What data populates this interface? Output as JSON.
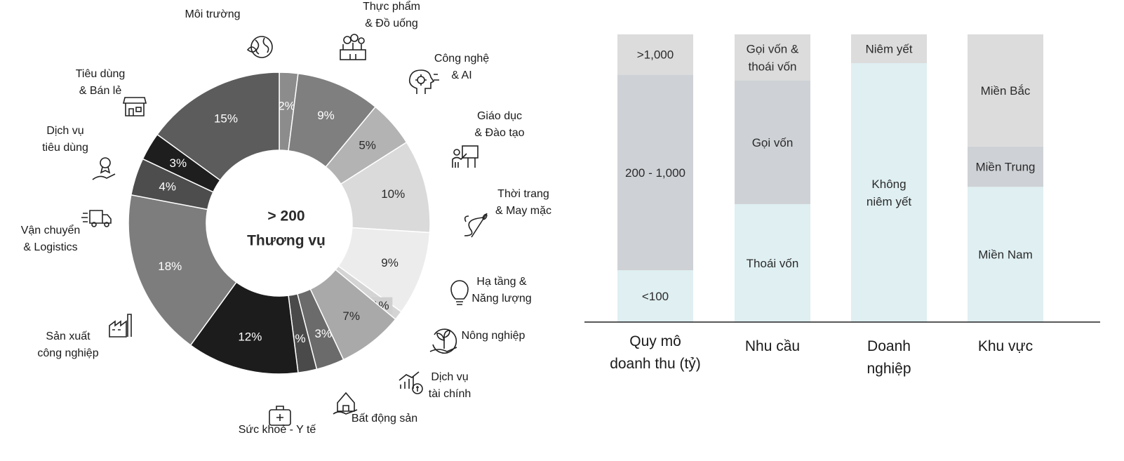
{
  "chart_data": [
    {
      "type": "pie",
      "center_text": [
        "> 200",
        "Thương vụ"
      ],
      "slices": [
        {
          "category": "Môi trường",
          "value": 2,
          "label": "2%",
          "color": "#8c8c8c"
        },
        {
          "category": "Thực phẩm & Đồ uống",
          "value": 9,
          "label": "9%",
          "color": "#7f7f7f"
        },
        {
          "category": "Công nghệ & AI",
          "value": 5,
          "label": "5%",
          "color": "#b3b3b3"
        },
        {
          "category": "Giáo dục & Đào tạo",
          "value": 10,
          "label": "10%",
          "color": "#dadada"
        },
        {
          "category": "Thời trang & May mặc",
          "value": 9,
          "label": "9%",
          "color": "#ececec"
        },
        {
          "category": "Hạ tầng & Năng lượng",
          "value": 1,
          "label": "1%",
          "color": "#d4d4d4"
        },
        {
          "category": "Nông nghiệp",
          "value": 7,
          "label": "7%",
          "color": "#a9a9a9"
        },
        {
          "category": "Dịch vụ tài chính",
          "value": 3,
          "label": "3%",
          "color": "#6b6b6b"
        },
        {
          "category": "Bất động sản",
          "value": 2,
          "label": "2%",
          "color": "#4a4a4a"
        },
        {
          "category": "Sức khoẻ - Y tế",
          "value": 12,
          "label": "12%",
          "color": "#1c1c1c"
        },
        {
          "category": "Sản xuất công nghiệp",
          "value": 18,
          "label": "18%",
          "color": "#7d7d7d"
        },
        {
          "category": "Vận chuyển & Logistics",
          "value": 4,
          "label": "4%",
          "color": "#4d4d4d"
        },
        {
          "category": "Dịch vụ tiêu dùng",
          "value": 3,
          "label": "3%",
          "color": "#1e1e1e"
        },
        {
          "category": "Tiêu dùng & Bán lẻ",
          "value": 15,
          "label": "15%",
          "color": "#5c5c5c"
        }
      ],
      "category_labels": [
        [
          "Môi trường"
        ],
        [
          "Thực phẩm",
          "& Đồ uống"
        ],
        [
          "Công nghệ",
          "& AI"
        ],
        [
          "Giáo dục",
          "& Đào tạo"
        ],
        [
          "Thời trang",
          "& May mặc"
        ],
        [
          "Hạ tầng &",
          "Năng lượng"
        ],
        [
          "Nông nghiệp"
        ],
        [
          "Dịch vụ",
          "tài chính"
        ],
        [
          "Bất động sản"
        ],
        [
          "Sức khoẻ - Y tế"
        ],
        [
          "Sản xuất",
          "công nghiệp"
        ],
        [
          "Vận chuyển",
          "& Logistics"
        ],
        [
          "Dịch vụ",
          "tiêu dùng"
        ],
        [
          "Tiêu dùng",
          "& Bán lẻ"
        ]
      ]
    },
    {
      "type": "bar",
      "stacked": true,
      "normalized": true,
      "categories": [
        [
          "Quy mô",
          "doanh thu (tỷ)"
        ],
        [
          "Nhu cầu"
        ],
        [
          "Doanh",
          "nghiệp"
        ],
        [
          "Khu vực"
        ]
      ],
      "stacks": [
        {
          "segments": [
            {
              "label": [
                "<100"
              ],
              "fraction": 0.18,
              "color": "#dfeff2"
            },
            {
              "label": [
                "200 - 1,000"
              ],
              "fraction": 0.68,
              "color": "#ced1d5"
            },
            {
              "label": [
                ">1,000"
              ],
              "fraction": 0.14,
              "color": "#dcdcdc"
            }
          ]
        },
        {
          "segments": [
            {
              "label": [
                "Thoái vốn"
              ],
              "fraction": 0.41,
              "color": "#dfeff2"
            },
            {
              "label": [
                "Gọi vốn"
              ],
              "fraction": 0.43,
              "color": "#ced1d5"
            },
            {
              "label": [
                "Gọi vốn &",
                "thoái vốn"
              ],
              "fraction": 0.16,
              "color": "#dcdcdc"
            }
          ]
        },
        {
          "segments": [
            {
              "label": [
                "Không",
                "niêm yết"
              ],
              "fraction": 0.9,
              "color": "#dfeff2"
            },
            {
              "label": [
                "Niêm yết"
              ],
              "fraction": 0.1,
              "color": "#dcdcdc"
            }
          ]
        },
        {
          "segments": [
            {
              "label": [
                "Miền Nam"
              ],
              "fraction": 0.47,
              "color": "#dfeff2"
            },
            {
              "label": [
                "Miền Trung"
              ],
              "fraction": 0.14,
              "color": "#ced1d5"
            },
            {
              "label": [
                "Miền Bắc"
              ],
              "fraction": 0.39,
              "color": "#dcdcdc"
            }
          ]
        }
      ]
    }
  ],
  "icons": [
    "globe-leaf-icon",
    "food-drink-icon",
    "ai-gear-icon",
    "teacher-board-icon",
    "needle-thread-icon",
    "lightbulb-icon",
    "plant-hand-icon",
    "finance-chart-icon",
    "house-hand-icon",
    "medical-kit-icon",
    "factory-icon",
    "delivery-truck-icon",
    "award-hand-icon",
    "storefront-icon"
  ]
}
